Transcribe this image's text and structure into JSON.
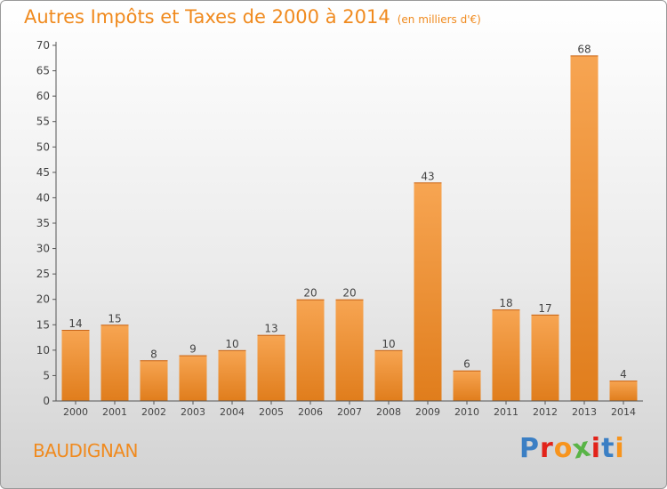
{
  "chart_data": {
    "type": "bar",
    "title": "Autres Impôts et Taxes de 2000 à 2014",
    "subtitle": "(en milliers d'€)",
    "categories": [
      "2000",
      "2001",
      "2002",
      "2003",
      "2004",
      "2005",
      "2006",
      "2007",
      "2008",
      "2009",
      "2010",
      "2011",
      "2012",
      "2013",
      "2014"
    ],
    "values": [
      14,
      15,
      8,
      9,
      10,
      13,
      20,
      20,
      10,
      43,
      6,
      18,
      17,
      68,
      4
    ],
    "ylim": [
      0,
      70
    ],
    "yticks": [
      0,
      5,
      10,
      15,
      20,
      25,
      30,
      35,
      40,
      45,
      50,
      55,
      60,
      65,
      70
    ],
    "grid": false,
    "legend": "none",
    "colors": {
      "bar_light": "#f7a552",
      "bar_dark": "#e07d1c",
      "title": "#f08a1e",
      "axis": "#555555"
    }
  },
  "footer": {
    "commune": "BAUDIGNAN",
    "logo_text": "Proxiti",
    "logo_colors": [
      "#3b7fc4",
      "#e2231a",
      "#f7941d",
      "#59b447",
      "#e2231a",
      "#3b7fc4",
      "#f7941d"
    ]
  }
}
